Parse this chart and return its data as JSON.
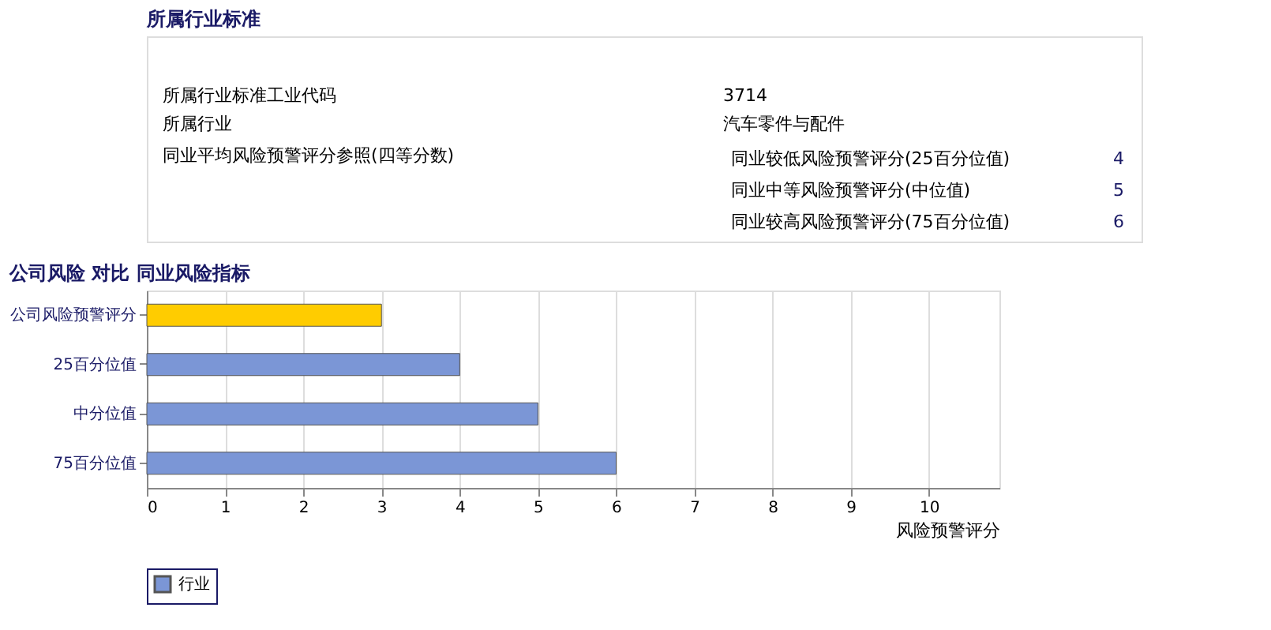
{
  "chart_data": [
    {
      "type": "other",
      "title": "所属行业标准",
      "annotations": [
        "所属行业标准工业代码",
        "3714",
        "所属行业",
        "汽车零件与配件",
        "同业平均风险预警评分参照(四等分数)",
        "同业较低风险预警评分(25百分位值)",
        "4",
        "同业中等风险预警评分(中位值)",
        "5",
        "同业较高风险预警评分(75百分位值)",
        "6"
      ]
    },
    {
      "type": "bar",
      "orientation": "horizontal",
      "title": "公司风险 对比 同业风险指标",
      "xlabel": "风险预警评分",
      "categories": [
        "公司风险预警评分",
        "25百分位值",
        "中分位值",
        "75百分位值"
      ],
      "series": [
        {
          "color": "#ffcc00",
          "values": [
            3,
            null,
            null,
            null
          ]
        },
        {
          "name": "行业",
          "color": "#7b96d6",
          "values": [
            null,
            4,
            5,
            6
          ]
        }
      ],
      "xlim": [
        0,
        10.9
      ],
      "xticks": [
        0,
        1,
        2,
        3,
        4,
        5,
        6,
        7,
        8,
        9,
        10
      ],
      "grid": "x",
      "legend": "bottom"
    }
  ]
}
